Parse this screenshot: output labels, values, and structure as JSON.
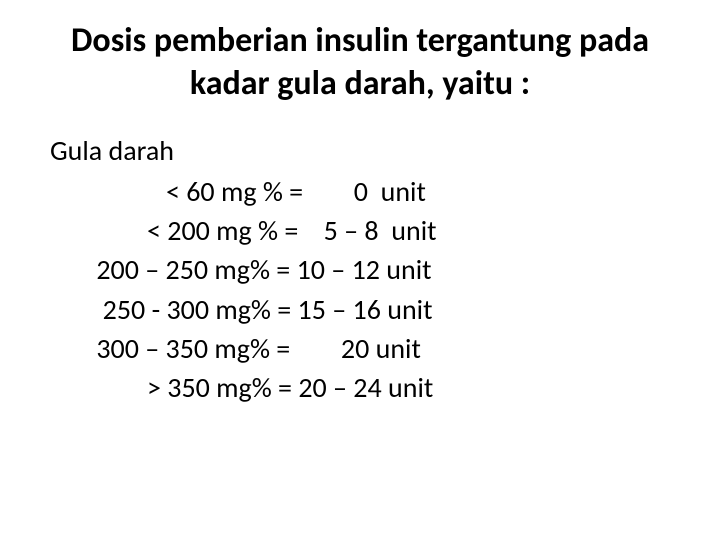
{
  "title": "Dosis pemberian insulin tergantung pada kadar gula darah, yaitu :",
  "subtitle": "Gula darah",
  "rows": [
    "            < 60 mg % =        0  unit",
    "         < 200 mg % =    5 – 8  unit",
    " 200 – 250 mg% = 10 – 12 unit",
    "  250 - 300 mg% = 15 – 16 unit",
    " 300 – 350 mg% =        20 unit",
    "         > 350 mg% = 20 – 24 unit"
  ]
}
